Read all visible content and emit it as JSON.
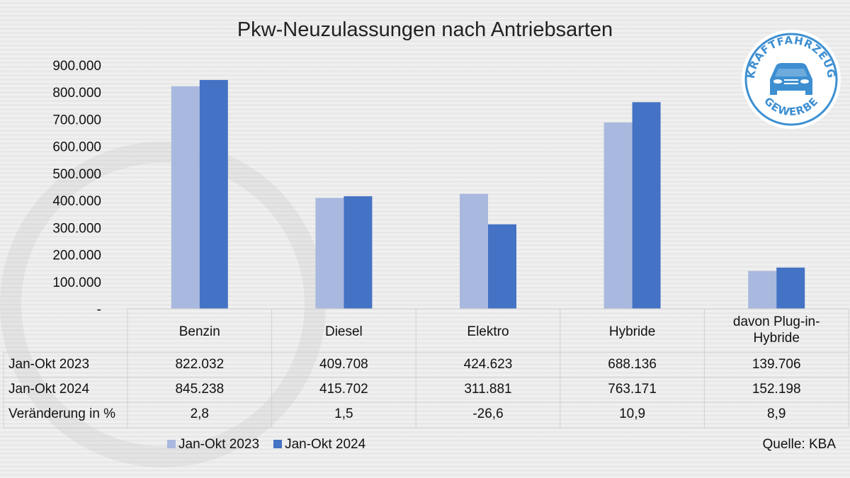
{
  "chart_data": {
    "type": "bar",
    "title": "Pkw-Neuzulassungen nach Antriebsarten",
    "categories": [
      "Benzin",
      "Diesel",
      "Elektro",
      "Hybride",
      "davon Plug-in-Hybride"
    ],
    "series": [
      {
        "name": "Jan-Okt 2023",
        "values": [
          822032,
          409708,
          424623,
          688136,
          139706
        ],
        "color": "#a9b8de"
      },
      {
        "name": "Jan-Okt 2024",
        "values": [
          845238,
          415702,
          311881,
          763171,
          152198
        ],
        "color": "#4472c4"
      }
    ],
    "ylim": [
      0,
      900000
    ],
    "yticks": [
      "-",
      "100.000",
      "200.000",
      "300.000",
      "400.000",
      "500.000",
      "600.000",
      "700.000",
      "800.000",
      "900.000"
    ],
    "legend": "bottom",
    "grid": false,
    "table": {
      "rows": [
        {
          "label": "Jan-Okt 2023",
          "cells": [
            "822.032",
            "409.708",
            "424.623",
            "688.136",
            "139.706"
          ]
        },
        {
          "label": "Jan-Okt 2024",
          "cells": [
            "845.238",
            "415.702",
            "311.881",
            "763.171",
            "152.198"
          ]
        },
        {
          "label": "Veränderung in %",
          "cells": [
            "2,8",
            "1,5",
            "-26,6",
            "10,9",
            "8,9"
          ]
        }
      ]
    },
    "source": "Quelle: KBA"
  },
  "logo": {
    "top_text": "KRAFTFAHRZEUG",
    "bottom_text": "GEWERBE",
    "color": "#3d8fd1"
  }
}
